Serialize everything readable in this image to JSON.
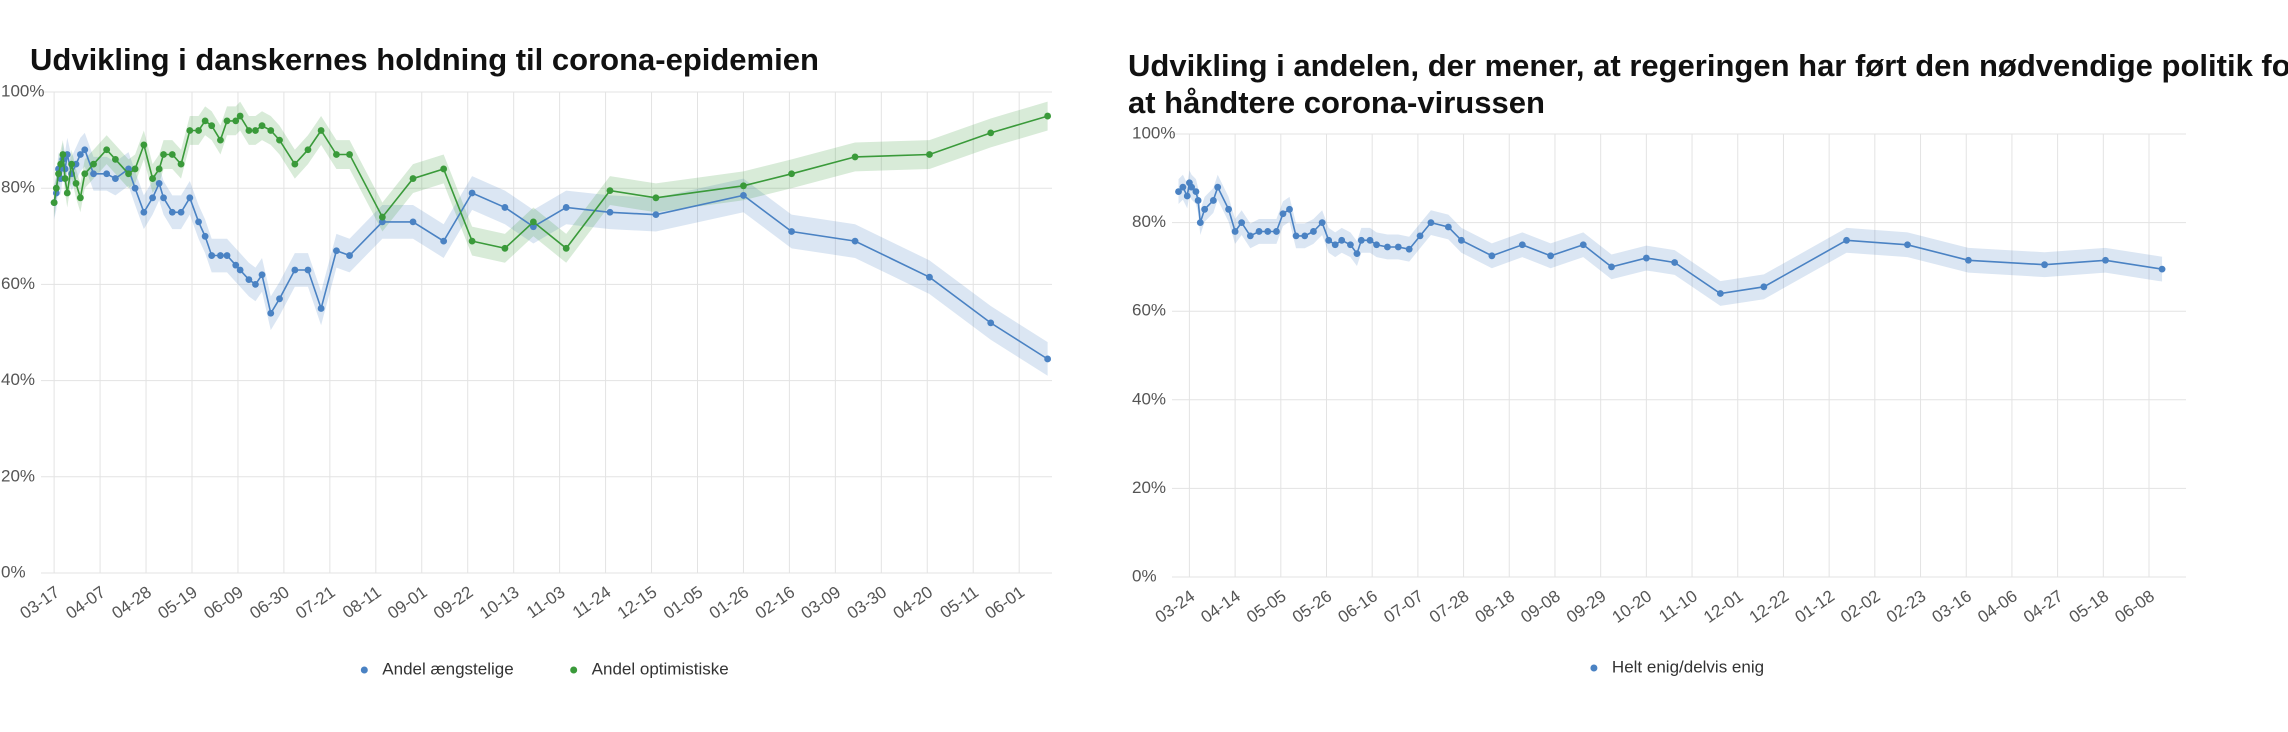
{
  "chart_data": [
    {
      "type": "line",
      "title": "Udvikling i danskernes holdning til corona-epidemien",
      "x": [
        0,
        1,
        2,
        3,
        4,
        5,
        6,
        8,
        10,
        12,
        14,
        18,
        24,
        28,
        34,
        37,
        41,
        45,
        48,
        50,
        54,
        58,
        62,
        66,
        69,
        72,
        76,
        79,
        83,
        85,
        89,
        92,
        95,
        99,
        103,
        110,
        116,
        122,
        129,
        135,
        150,
        164,
        178,
        191,
        206,
        219,
        234,
        254,
        275,
        315,
        337,
        366,
        400,
        428,
        454
      ],
      "series": [
        {
          "name": "Andel ængstelige",
          "color": "#4a82c3",
          "interval": 3.5,
          "values": [
            77,
            79,
            84,
            82,
            86,
            84,
            87,
            83,
            85,
            87,
            88,
            83,
            83,
            82,
            84,
            80,
            75,
            78,
            81,
            78,
            75,
            75,
            78,
            73,
            70,
            66,
            66,
            66,
            64,
            63,
            61,
            60,
            62,
            54,
            57,
            63,
            63,
            55,
            67,
            66,
            73,
            73,
            69,
            79,
            76,
            72,
            76,
            75,
            74.5,
            78.5,
            71,
            69,
            61.5,
            52,
            44.5
          ]
        },
        {
          "name": "Andel optimistiske",
          "color": "#3a9a3a",
          "interval": 3,
          "values": [
            77,
            80,
            83,
            85,
            87,
            82,
            79,
            85,
            81,
            78,
            83,
            85,
            88,
            86,
            83,
            84,
            89,
            82,
            84,
            87,
            87,
            85,
            92,
            92,
            94,
            93,
            90,
            94,
            94,
            95,
            92,
            92,
            93,
            92,
            90,
            85,
            88,
            92,
            87,
            87,
            74,
            82,
            84,
            69,
            67.5,
            73,
            67.5,
            79.5,
            78,
            80.5,
            83,
            86.5,
            87,
            91.5,
            95
          ]
        }
      ],
      "xlim": [
        -6,
        456
      ],
      "xticks": [
        {
          "value": 0,
          "label": "03-17"
        },
        {
          "value": 21,
          "label": "04-07"
        },
        {
          "value": 42,
          "label": "04-28"
        },
        {
          "value": 63,
          "label": "05-19"
        },
        {
          "value": 84,
          "label": "06-09"
        },
        {
          "value": 105,
          "label": "06-30"
        },
        {
          "value": 126,
          "label": "07-21"
        },
        {
          "value": 147,
          "label": "08-11"
        },
        {
          "value": 168,
          "label": "09-01"
        },
        {
          "value": 189,
          "label": "09-22"
        },
        {
          "value": 210,
          "label": "10-13"
        },
        {
          "value": 231,
          "label": "11-03"
        },
        {
          "value": 252,
          "label": "11-24"
        },
        {
          "value": 273,
          "label": "12-15"
        },
        {
          "value": 294,
          "label": "01-05"
        },
        {
          "value": 315,
          "label": "01-26"
        },
        {
          "value": 336,
          "label": "02-16"
        },
        {
          "value": 357,
          "label": "03-09"
        },
        {
          "value": 378,
          "label": "03-30"
        },
        {
          "value": 399,
          "label": "04-20"
        },
        {
          "value": 420,
          "label": "05-11"
        },
        {
          "value": 441,
          "label": "06-01"
        }
      ],
      "ylim": [
        0,
        100
      ],
      "yticks": [
        {
          "value": 0,
          "label": "0%"
        },
        {
          "value": 20,
          "label": "20%"
        },
        {
          "value": 40,
          "label": "40%"
        },
        {
          "value": 60,
          "label": "60%"
        },
        {
          "value": 80,
          "label": "80%"
        },
        {
          "value": 100,
          "label": "100%"
        }
      ],
      "grid": true
    },
    {
      "type": "line",
      "title": [
        "Udvikling i andelen, der mener, at regeringen har ført den nødvendige politik for",
        "at håndtere corona-virussen"
      ],
      "x": [
        -5,
        -3,
        -1,
        0,
        1,
        3,
        4,
        5,
        7,
        11,
        13,
        18,
        21,
        24,
        28,
        32,
        36,
        40,
        43,
        46,
        49,
        53,
        57,
        61,
        64,
        67,
        70,
        74,
        77,
        79,
        83,
        86,
        91,
        96,
        101,
        106,
        111,
        119,
        125,
        139,
        153,
        166,
        181,
        194,
        210,
        223,
        244,
        264,
        302,
        330,
        358,
        393,
        421,
        447
      ],
      "series": [
        {
          "name": "Helt enig/delvis enig",
          "color": "#4a82c3",
          "interval": 2.8,
          "values": [
            87,
            88,
            86,
            89,
            88,
            87,
            85,
            80,
            83,
            85,
            88,
            83,
            78,
            80,
            77,
            78,
            78,
            78,
            82,
            83,
            77,
            77,
            78,
            80,
            76,
            75,
            76,
            75,
            73,
            76,
            76,
            75,
            74.5,
            74.5,
            74,
            77,
            80,
            79,
            76,
            72.5,
            75,
            72.5,
            75,
            70,
            72,
            71,
            64,
            65.5,
            76,
            75,
            71.5,
            70.5,
            71.5,
            69.5
          ]
        }
      ],
      "xlim": [
        -8,
        458
      ],
      "xticks": [
        {
          "value": 0,
          "label": "03-24"
        },
        {
          "value": 21,
          "label": "04-14"
        },
        {
          "value": 42,
          "label": "05-05"
        },
        {
          "value": 63,
          "label": "05-26"
        },
        {
          "value": 84,
          "label": "06-16"
        },
        {
          "value": 105,
          "label": "07-07"
        },
        {
          "value": 126,
          "label": "07-28"
        },
        {
          "value": 147,
          "label": "08-18"
        },
        {
          "value": 168,
          "label": "09-08"
        },
        {
          "value": 189,
          "label": "09-29"
        },
        {
          "value": 210,
          "label": "10-20"
        },
        {
          "value": 231,
          "label": "11-10"
        },
        {
          "value": 252,
          "label": "12-01"
        },
        {
          "value": 273,
          "label": "12-22"
        },
        {
          "value": 294,
          "label": "01-12"
        },
        {
          "value": 315,
          "label": "02-02"
        },
        {
          "value": 336,
          "label": "02-23"
        },
        {
          "value": 357,
          "label": "03-16"
        },
        {
          "value": 378,
          "label": "04-06"
        },
        {
          "value": 399,
          "label": "04-27"
        },
        {
          "value": 420,
          "label": "05-18"
        },
        {
          "value": 441,
          "label": "06-08"
        }
      ],
      "ylim": [
        0,
        100
      ],
      "yticks": [
        {
          "value": 0,
          "label": "0%"
        },
        {
          "value": 20,
          "label": "20%"
        },
        {
          "value": 40,
          "label": "40%"
        },
        {
          "value": 60,
          "label": "60%"
        },
        {
          "value": 80,
          "label": "80%"
        },
        {
          "value": 100,
          "label": "100%"
        }
      ],
      "grid": true
    }
  ]
}
